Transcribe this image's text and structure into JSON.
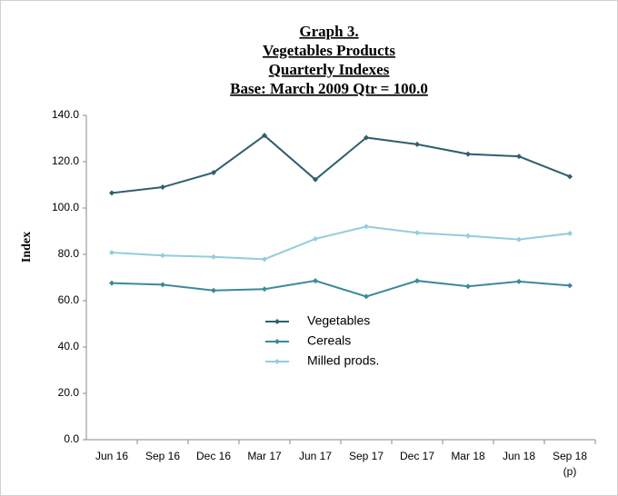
{
  "chart_data": {
    "type": "line",
    "title": [
      "Graph 3.",
      "Vegetables Products",
      "Quarterly Indexes",
      "Base: March 2009 Qtr  = 100.0"
    ],
    "ylabel": "Index",
    "categories": [
      "Jun 16",
      "Sep 16",
      "Dec 16",
      "Mar 17",
      "Jun 17",
      "Sep 17",
      "Dec 17",
      "Mar 18",
      "Jun 18",
      "Sep 18\n(p)"
    ],
    "series": [
      {
        "name": "Vegetables",
        "color": "#2e5f6e",
        "values": [
          106.5,
          109.0,
          115.3,
          131.3,
          112.3,
          130.4,
          127.5,
          123.3,
          122.3,
          113.6
        ]
      },
      {
        "name": "Cereals",
        "color": "#3a8a99",
        "values": [
          67.6,
          66.9,
          64.4,
          65.0,
          68.6,
          61.8,
          68.6,
          66.2,
          68.3,
          66.5
        ]
      },
      {
        "name": "Milled prods.",
        "color": "#92cddc",
        "values": [
          80.8,
          79.5,
          78.9,
          77.9,
          86.7,
          92.0,
          89.3,
          88.0,
          86.4,
          89.0
        ]
      }
    ],
    "ylim": [
      0,
      140
    ],
    "yticks": [
      {
        "value": 0,
        "label": "0.0"
      },
      {
        "value": 20,
        "label": "20.0"
      },
      {
        "value": 40,
        "label": "40.0"
      },
      {
        "value": 60,
        "label": "60.0"
      },
      {
        "value": 80,
        "label": "80.0"
      },
      {
        "value": 100,
        "label": "100.0"
      },
      {
        "value": 120,
        "label": "120.0"
      },
      {
        "value": 140,
        "label": "140.0"
      }
    ],
    "grid": false,
    "legend": "center"
  }
}
